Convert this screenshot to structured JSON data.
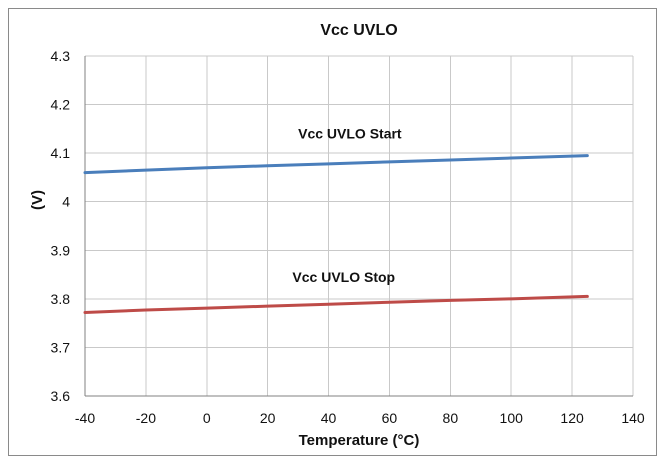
{
  "chart_data": {
    "type": "line",
    "title": "Vcc UVLO",
    "xlabel": "Temperature (°C)",
    "ylabel": "(V)",
    "xlim": [
      -40,
      140
    ],
    "ylim": [
      3.6,
      4.3
    ],
    "xticks": [
      -40,
      -20,
      0,
      20,
      40,
      60,
      80,
      100,
      120,
      140
    ],
    "yticks": [
      3.6,
      3.7,
      3.8,
      3.9,
      4.0,
      4.1,
      4.2,
      4.3
    ],
    "ytick_labels": [
      "3.6",
      "3.7",
      "3.8",
      "3.9",
      "4",
      "4.1",
      "4.2",
      "4.3"
    ],
    "grid": true,
    "series": [
      {
        "name": "Vcc UVLO Start",
        "color": "#4A7EBB",
        "x": [
          -40,
          -20,
          0,
          20,
          40,
          60,
          80,
          100,
          125
        ],
        "y": [
          4.06,
          4.065,
          4.07,
          4.074,
          4.078,
          4.082,
          4.086,
          4.09,
          4.095
        ]
      },
      {
        "name": "Vcc UVLO Stop",
        "color": "#BE4B48",
        "x": [
          -40,
          -20,
          0,
          20,
          40,
          60,
          80,
          100,
          125
        ],
        "y": [
          3.772,
          3.777,
          3.781,
          3.785,
          3.789,
          3.793,
          3.797,
          3.8,
          3.805
        ]
      }
    ],
    "annotations": [
      {
        "text": "Vcc UVLO Start",
        "x": 47,
        "y": 4.13
      },
      {
        "text": "Vcc UVLO Stop",
        "x": 45,
        "y": 3.835
      }
    ]
  }
}
